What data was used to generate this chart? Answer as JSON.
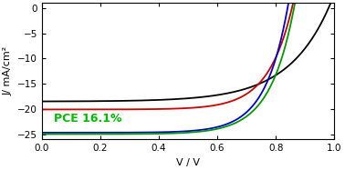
{
  "title": "",
  "xlabel": "V / V",
  "ylabel": "J/ mA/cm²",
  "xlim": [
    0.0,
    1.0
  ],
  "ylim": [
    -26,
    1
  ],
  "xticks": [
    0.0,
    0.2,
    0.4,
    0.6,
    0.8,
    1.0
  ],
  "yticks": [
    0,
    -5,
    -10,
    -15,
    -20,
    -25
  ],
  "pce_label": "PCE 16.1%",
  "pce_color": "#00bb00",
  "curves": [
    {
      "color": "#000000",
      "Jsc": -18.5,
      "Voc": 0.98,
      "n": 5.5
    },
    {
      "color": "#cc0000",
      "Jsc": -20.1,
      "Voc": 0.855,
      "n": 3.2
    },
    {
      "color": "#0000cc",
      "Jsc": -24.7,
      "Voc": 0.84,
      "n": 3.0
    },
    {
      "color": "#009900",
      "Jsc": -25.0,
      "Voc": 0.862,
      "n": 3.2
    }
  ],
  "background_color": "#ffffff",
  "figsize": [
    3.78,
    1.87
  ],
  "dpi": 100
}
